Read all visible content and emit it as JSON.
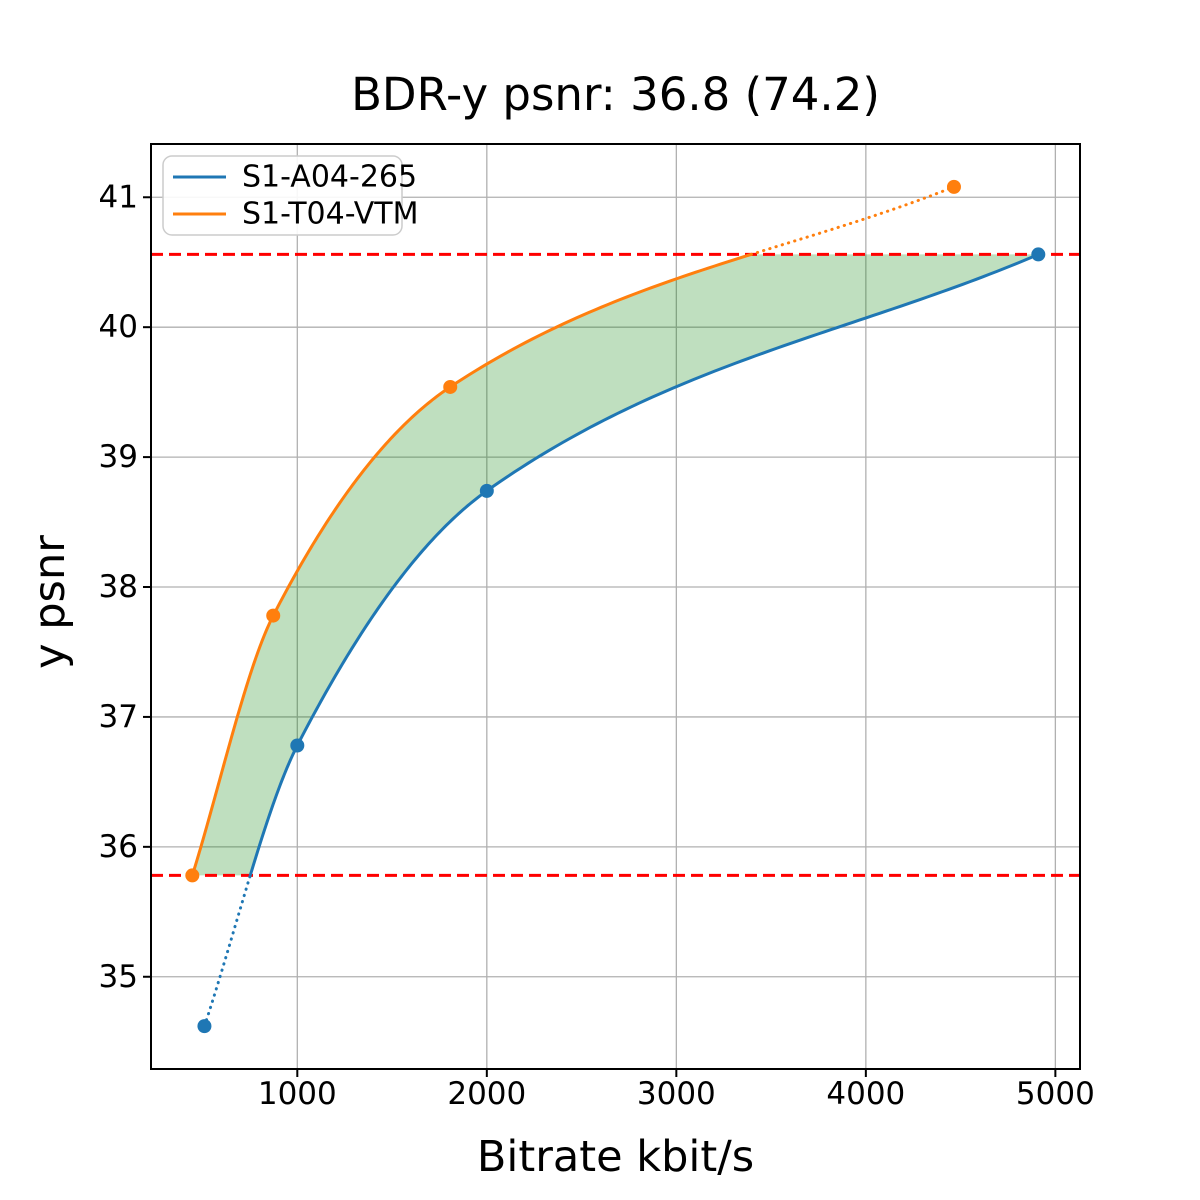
{
  "figure": {
    "title": "BDR-y psnr: 36.8 (74.2)"
  },
  "chart_data": {
    "type": "line",
    "title": "BDR-y psnr: 36.8 (74.2)",
    "xlabel": "Bitrate kbit/s",
    "ylabel": "y psnr",
    "xlim": [
      228,
      5130
    ],
    "ylim": [
      34.29,
      41.41
    ],
    "xticks": [
      1000,
      2000,
      3000,
      4000,
      5000
    ],
    "yticks": [
      35,
      36,
      37,
      38,
      39,
      40,
      41
    ],
    "grid": true,
    "grid_color": "#b0b0b0",
    "spine_color": "#000000",
    "legend": {
      "position": "upper left",
      "entries": [
        "S1-A04-265",
        "S1-T04-VTM"
      ],
      "border_color": "#cccccc",
      "background": "#ffffff"
    },
    "series": [
      {
        "name": "S1-A04-265",
        "color": "#1f77b4",
        "marker": "circle",
        "points": [
          [
            510,
            34.62
          ],
          [
            1000,
            36.78
          ],
          [
            2000,
            38.74
          ],
          [
            4910,
            40.56
          ]
        ]
      },
      {
        "name": "S1-T04-VTM",
        "color": "#ff7f0e",
        "marker": "circle",
        "points": [
          [
            446,
            35.78
          ],
          [
            873,
            37.78
          ],
          [
            1807,
            39.54
          ],
          [
            4465,
            41.08
          ]
        ]
      }
    ],
    "hlines": [
      {
        "y": 35.78,
        "color": "#ff0000",
        "style": "dashed"
      },
      {
        "y": 40.56,
        "color": "#ff0000",
        "style": "dashed"
      }
    ],
    "fill_between": {
      "lower_bound": 35.78,
      "upper_bound": 40.56,
      "color": "#008000",
      "alpha": 0.25
    },
    "interpolation": "pchip",
    "out_of_band_style": "dotted"
  }
}
